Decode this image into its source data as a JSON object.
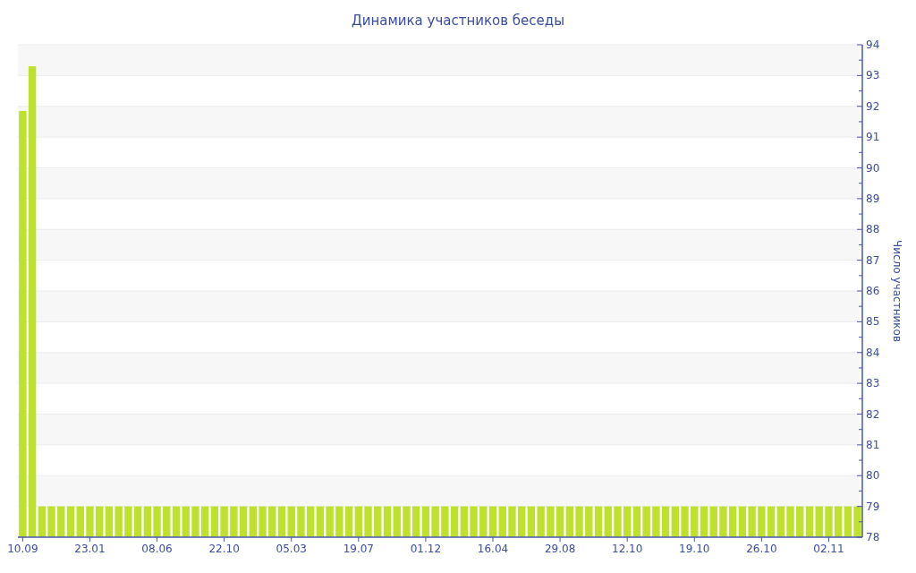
{
  "chart_data": {
    "type": "bar",
    "title": "Динамика участников беседы",
    "ylabel": "Число участников",
    "categories": [
      "10.09",
      null,
      null,
      null,
      null,
      null,
      null,
      "23.01",
      null,
      null,
      null,
      null,
      null,
      null,
      "08.06",
      null,
      null,
      null,
      null,
      null,
      null,
      "22.10",
      null,
      null,
      null,
      null,
      null,
      null,
      "05.03",
      null,
      null,
      null,
      null,
      null,
      null,
      "19.07",
      null,
      null,
      null,
      null,
      null,
      null,
      "01.12",
      null,
      null,
      null,
      null,
      null,
      null,
      "16.04",
      null,
      null,
      null,
      null,
      null,
      null,
      "29.08",
      null,
      null,
      null,
      null,
      null,
      null,
      "12.10",
      null,
      null,
      null,
      null,
      null,
      null,
      "19.10",
      null,
      null,
      null,
      null,
      null,
      null,
      "26.10",
      null,
      null,
      null,
      null,
      null,
      null,
      "02.11",
      null,
      null,
      null
    ],
    "values": [
      91.85,
      93.3,
      79,
      79,
      79,
      79,
      79,
      79,
      79,
      79,
      79,
      79,
      79,
      79,
      79,
      79,
      79,
      79,
      79,
      79,
      79,
      79,
      79,
      79,
      79,
      79,
      79,
      79,
      79,
      79,
      79,
      79,
      79,
      79,
      79,
      79,
      79,
      79,
      79,
      79,
      79,
      79,
      79,
      79,
      79,
      79,
      79,
      79,
      79,
      79,
      79,
      79,
      79,
      79,
      79,
      79,
      79,
      79,
      79,
      79,
      79,
      79,
      79,
      79,
      79,
      79,
      79,
      79,
      79,
      79,
      79,
      79,
      79,
      79,
      79,
      79,
      79,
      79,
      79,
      79,
      79,
      79,
      79,
      79,
      79,
      79,
      79,
      79
    ],
    "color": "#bde12d",
    "ylim": [
      78,
      94
    ],
    "yticks": [
      78,
      {
        "value": 78.5,
        "label": null
      },
      79,
      {
        "value": 79.5,
        "label": null
      },
      80,
      {
        "value": 80.5,
        "label": null
      },
      81,
      {
        "value": 81.5,
        "label": null
      },
      82,
      {
        "value": 82.5,
        "label": null
      },
      83,
      {
        "value": 83.5,
        "label": null
      },
      84,
      {
        "value": 84.5,
        "label": null
      },
      85,
      {
        "value": 85.5,
        "label": null
      },
      86,
      {
        "value": 86.5,
        "label": null
      },
      87,
      {
        "value": 87.5,
        "label": null
      },
      88,
      {
        "value": 88.5,
        "label": null
      },
      89,
      {
        "value": 89.5,
        "label": null
      },
      90,
      {
        "value": 90.5,
        "label": null
      },
      91,
      {
        "value": 91.5,
        "label": null
      },
      92,
      {
        "value": 92.5,
        "label": null
      },
      93,
      {
        "value": 93.5,
        "label": null
      },
      94
    ],
    "grid": true
  }
}
